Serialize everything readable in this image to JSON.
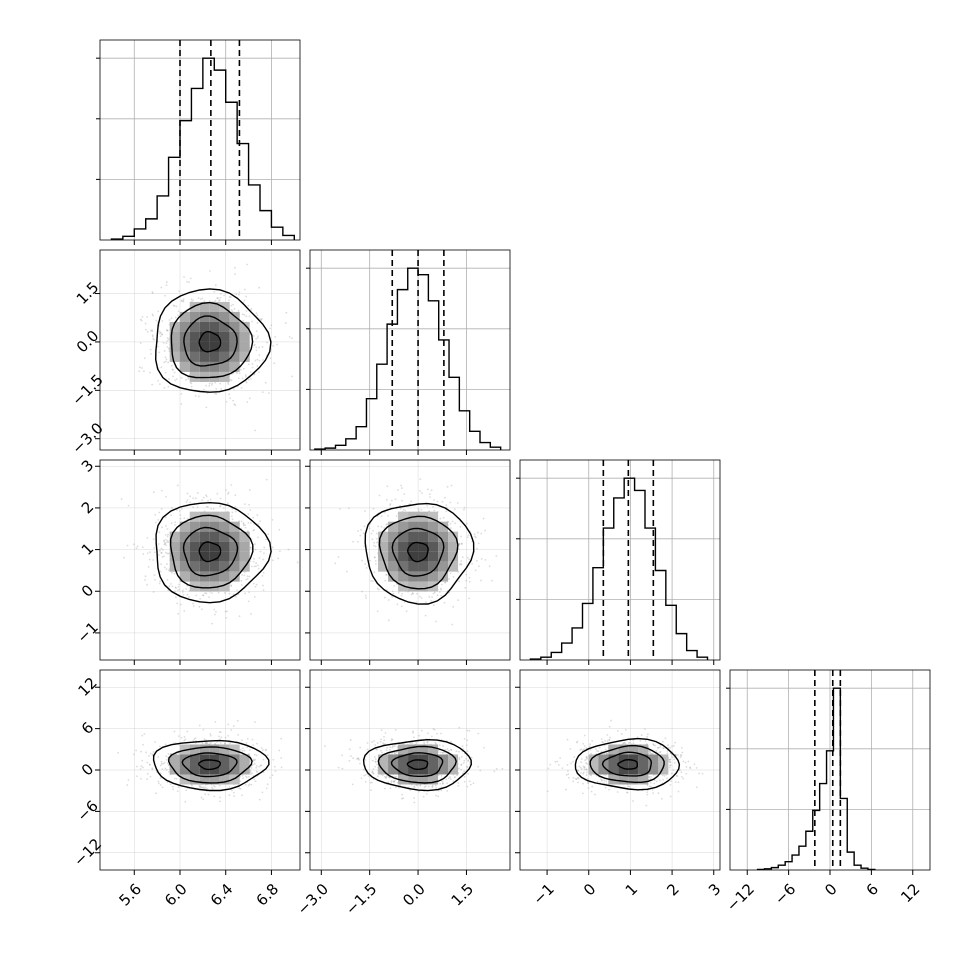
{
  "chart_data": {
    "type": "corner",
    "grid": true,
    "quantiles": [
      0.16,
      0.5,
      0.84
    ],
    "colors": {
      "line": "#000000",
      "grid": "#b0b0b0",
      "scatter": "#9a9a9a"
    },
    "params": [
      {
        "range": [
          5.3,
          7.05
        ],
        "ticks": [
          5.6,
          6.0,
          6.4,
          6.8
        ],
        "tick_labels": [
          "5.6",
          "6.0",
          "6.4",
          "6.8"
        ],
        "quantile_values": [
          6.0,
          6.27,
          6.52
        ],
        "hist_edges": [
          5.4,
          5.5,
          5.6,
          5.7,
          5.8,
          5.9,
          6.0,
          6.1,
          6.2,
          6.3,
          6.4,
          6.5,
          6.6,
          6.7,
          6.8,
          6.9,
          7.0
        ],
        "hist_counts": [
          1,
          4,
          12,
          23,
          48,
          90,
          130,
          165,
          198,
          185,
          150,
          105,
          60,
          32,
          14,
          5
        ],
        "center": 6.26,
        "sigma": 0.24
      },
      {
        "range": [
          -3.35,
          2.85
        ],
        "ticks": [
          -3.0,
          -1.5,
          0.0,
          1.5
        ],
        "tick_labels": [
          "−3.0",
          "−1.5",
          "0.0",
          "1.5"
        ],
        "quantile_values": [
          -0.8,
          0.0,
          0.8
        ],
        "hist_edges": [
          -3.2,
          -2.88,
          -2.56,
          -2.24,
          -1.92,
          -1.6,
          -1.28,
          -0.96,
          -0.64,
          -0.32,
          0.0,
          0.32,
          0.64,
          0.96,
          1.28,
          1.6,
          1.92,
          2.24,
          2.56
        ],
        "hist_counts": [
          1,
          2,
          5,
          12,
          25,
          55,
          92,
          135,
          172,
          195,
          188,
          160,
          118,
          78,
          42,
          20,
          8,
          3
        ],
        "center": 0.0,
        "sigma": 0.8
      },
      {
        "range": [
          -1.65,
          3.15
        ],
        "ticks": [
          -1,
          0,
          1,
          2,
          3
        ],
        "tick_labels": [
          "−1",
          "0",
          "1",
          "2",
          "3"
        ],
        "quantile_values": [
          0.35,
          0.95,
          1.55
        ],
        "hist_edges": [
          -1.4,
          -1.15,
          -0.9,
          -0.65,
          -0.4,
          -0.15,
          0.1,
          0.35,
          0.6,
          0.85,
          1.1,
          1.35,
          1.6,
          1.85,
          2.1,
          2.35,
          2.6,
          2.85
        ],
        "hist_counts": [
          1,
          3,
          8,
          18,
          34,
          60,
          98,
          140,
          172,
          193,
          180,
          140,
          95,
          58,
          28,
          10,
          3
        ],
        "center": 0.95,
        "sigma": 0.6
      },
      {
        "range": [
          -14.5,
          14.5
        ],
        "ticks": [
          -12,
          -6,
          0,
          6,
          12
        ],
        "tick_labels": [
          "−12",
          "−6",
          "0",
          "6",
          "12"
        ],
        "quantile_values": [
          -2.2,
          0.4,
          1.5
        ],
        "hist_edges": [
          -10.5,
          -9.5,
          -8.5,
          -7.5,
          -6.5,
          -5.5,
          -4.5,
          -3.5,
          -2.5,
          -1.5,
          -0.5,
          0.5,
          1.5,
          2.5,
          3.5,
          4.5,
          5.5,
          6.5
        ],
        "hist_counts": [
          1,
          2,
          4,
          8,
          14,
          25,
          40,
          65,
          100,
          145,
          200,
          305,
          120,
          30,
          8,
          3,
          1
        ],
        "center": 0.8,
        "sigma": 1.8
      }
    ]
  }
}
